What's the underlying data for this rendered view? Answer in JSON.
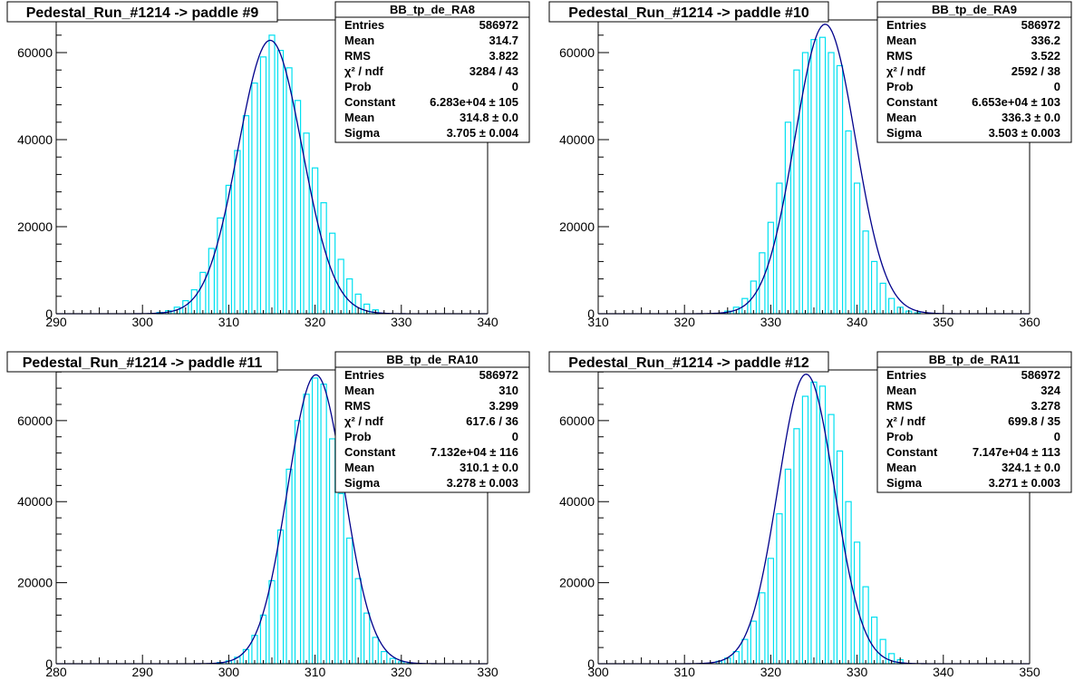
{
  "colors": {
    "histogram": "#00e0f0",
    "fit": "#00008b",
    "axis": "#000000",
    "background": "#ffffff"
  },
  "chart_data": [
    {
      "type": "bar",
      "title": "Pedestal_Run_#1214 -> paddle #9",
      "xlim": [
        290,
        340
      ],
      "ylim": [
        0,
        67500
      ],
      "xticks": [
        290,
        300,
        310,
        320,
        330,
        340
      ],
      "xtick_labels": [
        "290",
        "300",
        "310",
        "320",
        "330",
        "340"
      ],
      "yticks": [
        0,
        20000,
        40000,
        60000
      ],
      "ytick_labels": [
        "0",
        "20000",
        "40000",
        "60000"
      ],
      "x": [
        302,
        303,
        304,
        305,
        306,
        307,
        308,
        309,
        310,
        311,
        312,
        313,
        314,
        315,
        316,
        317,
        318,
        319,
        320,
        321,
        322,
        323,
        324,
        325,
        326,
        327
      ],
      "values": [
        300,
        700,
        1500,
        3000,
        5500,
        9500,
        15000,
        22000,
        29500,
        37500,
        45500,
        53000,
        59000,
        64000,
        60500,
        56500,
        49000,
        41500,
        33500,
        25500,
        18500,
        12500,
        8000,
        4500,
        2200,
        900
      ],
      "fit": {
        "constant": 62830,
        "mean": 314.8,
        "sigma": 3.705
      },
      "stats": {
        "name": "BB_tp_de_RA8",
        "rows": [
          {
            "label": "Entries",
            "value": "586972"
          },
          {
            "label": "Mean",
            "value": "314.7"
          },
          {
            "label": "RMS",
            "value": "3.822"
          },
          {
            "label": "χ² / ndf",
            "value": "3284 / 43"
          },
          {
            "label": "Prob",
            "value": "0"
          },
          {
            "label": "Constant",
            "value": "6.283e+04 ± 105"
          },
          {
            "label": "Mean",
            "value": "314.8 ± 0.0"
          },
          {
            "label": "Sigma",
            "value": "3.705 ± 0.004"
          }
        ]
      }
    },
    {
      "type": "bar",
      "title": "Pedestal_Run_#1214 -> paddle #10",
      "xlim": [
        310,
        360
      ],
      "ylim": [
        0,
        67500
      ],
      "xticks": [
        310,
        320,
        330,
        340,
        350,
        360
      ],
      "xtick_labels": [
        "310",
        "320",
        "330",
        "340",
        "350",
        "360"
      ],
      "yticks": [
        0,
        20000,
        40000,
        60000
      ],
      "ytick_labels": [
        "0",
        "20000",
        "40000",
        "60000"
      ],
      "x": [
        325,
        326,
        327,
        328,
        329,
        330,
        331,
        332,
        333,
        334,
        335,
        336,
        337,
        338,
        339,
        340,
        341,
        342,
        343,
        344,
        345,
        346,
        347
      ],
      "values": [
        600,
        1500,
        3500,
        7500,
        14000,
        21000,
        30000,
        44000,
        56000,
        60000,
        63000,
        63500,
        60000,
        57000,
        42000,
        30000,
        19000,
        12000,
        7000,
        3500,
        1500,
        600,
        200
      ],
      "fit": {
        "constant": 66530,
        "mean": 336.3,
        "sigma": 3.503
      },
      "stats": {
        "name": "BB_tp_de_RA9",
        "rows": [
          {
            "label": "Entries",
            "value": "586972"
          },
          {
            "label": "Mean",
            "value": "336.2"
          },
          {
            "label": "RMS",
            "value": "3.522"
          },
          {
            "label": "χ² / ndf",
            "value": "2592 / 38"
          },
          {
            "label": "Prob",
            "value": "0"
          },
          {
            "label": "Constant",
            "value": "6.653e+04 ± 103"
          },
          {
            "label": "Mean",
            "value": "336.3 ± 0.0"
          },
          {
            "label": "Sigma",
            "value": "3.503 ± 0.003"
          }
        ]
      }
    },
    {
      "type": "bar",
      "title": "Pedestal_Run_#1214 -> paddle #11",
      "xlim": [
        280,
        330
      ],
      "ylim": [
        0,
        72500
      ],
      "xticks": [
        280,
        290,
        300,
        310,
        320,
        330
      ],
      "xtick_labels": [
        "280",
        "290",
        "300",
        "310",
        "320",
        "330"
      ],
      "yticks": [
        0,
        20000,
        40000,
        60000
      ],
      "ytick_labels": [
        "0",
        "20000",
        "40000",
        "60000"
      ],
      "x": [
        299,
        300,
        301,
        302,
        303,
        304,
        305,
        306,
        307,
        308,
        309,
        310,
        311,
        312,
        313,
        314,
        315,
        316,
        317,
        318,
        319,
        320,
        321
      ],
      "values": [
        300,
        700,
        1600,
        3500,
        7000,
        12000,
        20500,
        33000,
        48000,
        60000,
        66500,
        70500,
        69000,
        55500,
        42000,
        31000,
        21000,
        12500,
        6500,
        3000,
        1300,
        500,
        200
      ],
      "fit": {
        "constant": 71320,
        "mean": 310.1,
        "sigma": 3.278
      },
      "stats": {
        "name": "BB_tp_de_RA10",
        "rows": [
          {
            "label": "Entries",
            "value": "586972"
          },
          {
            "label": "Mean",
            "value": "310"
          },
          {
            "label": "RMS",
            "value": "3.299"
          },
          {
            "label": "χ² / ndf",
            "value": "617.6 / 36"
          },
          {
            "label": "Prob",
            "value": "0"
          },
          {
            "label": "Constant",
            "value": "7.132e+04 ± 116"
          },
          {
            "label": "Mean",
            "value": "310.1 ± 0.0"
          },
          {
            "label": "Sigma",
            "value": "3.278 ± 0.003"
          }
        ]
      }
    },
    {
      "type": "bar",
      "title": "Pedestal_Run_#1214 -> paddle #12",
      "xlim": [
        300,
        350
      ],
      "ylim": [
        0,
        72500
      ],
      "xticks": [
        300,
        310,
        320,
        330,
        340,
        350
      ],
      "xtick_labels": [
        "300",
        "310",
        "320",
        "330",
        "340",
        "350"
      ],
      "yticks": [
        0,
        20000,
        40000,
        60000
      ],
      "ytick_labels": [
        "0",
        "20000",
        "40000",
        "60000"
      ],
      "x": [
        314,
        315,
        316,
        317,
        318,
        319,
        320,
        321,
        322,
        323,
        324,
        325,
        326,
        327,
        328,
        329,
        330,
        331,
        332,
        333,
        334,
        335
      ],
      "values": [
        600,
        1400,
        3000,
        6000,
        10500,
        17500,
        26000,
        37000,
        48000,
        58000,
        66000,
        69500,
        68500,
        61500,
        52500,
        40000,
        30000,
        19000,
        11500,
        6000,
        2500,
        1000
      ],
      "fit": {
        "constant": 71470,
        "mean": 324.1,
        "sigma": 3.271
      },
      "stats": {
        "name": "BB_tp_de_RA11",
        "rows": [
          {
            "label": "Entries",
            "value": "586972"
          },
          {
            "label": "Mean",
            "value": "324"
          },
          {
            "label": "RMS",
            "value": "3.278"
          },
          {
            "label": "χ² / ndf",
            "value": "699.8 / 35"
          },
          {
            "label": "Prob",
            "value": "0"
          },
          {
            "label": "Constant",
            "value": "7.147e+04 ± 113"
          },
          {
            "label": "Mean",
            "value": "324.1 ± 0.0"
          },
          {
            "label": "Sigma",
            "value": "3.271 ± 0.003"
          }
        ]
      }
    }
  ]
}
